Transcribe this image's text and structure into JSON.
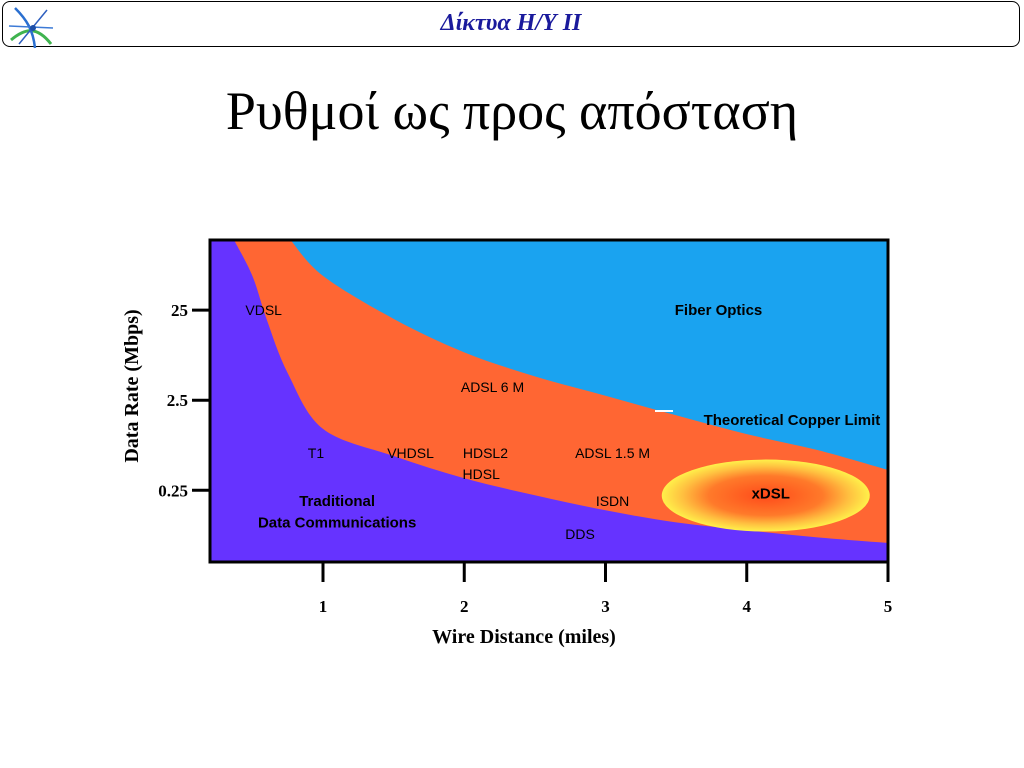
{
  "header": {
    "title": "Δίκτυα Η/Υ ΙΙ"
  },
  "slide": {
    "title": "Ρυθμοί ως προς απόσταση"
  },
  "colors": {
    "fiber": "#1aa3f0",
    "copper": "#ff6633",
    "traditional": "#6633ff",
    "xdsl_ring": "#ffee44",
    "header_text": "#1a1a9c"
  },
  "chart_data": {
    "type": "area",
    "xlabel": "Wire Distance (miles)",
    "ylabel": "Data Rate  (Mbps)",
    "x_ticks": [
      "1",
      "2",
      "3",
      "4",
      "5"
    ],
    "y_ticks": [
      "25",
      "2.5",
      "0.25"
    ],
    "x_range": [
      0.2,
      5
    ],
    "y_scale": "log",
    "y_range": [
      0.04,
      150
    ],
    "regions": [
      {
        "name": "Fiber Optics"
      },
      {
        "name": "Theoretical Copper Limit"
      },
      {
        "name": "Traditional Data Communications"
      }
    ],
    "boundaries": {
      "copper_limit": {
        "x": [
          0.77,
          1,
          1.5,
          2,
          2.5,
          3,
          3.5,
          4,
          4.5,
          5
        ],
        "y": [
          150,
          60,
          20,
          8.5,
          4.6,
          2.8,
          1.7,
          1.05,
          0.7,
          0.42
        ]
      },
      "traditional_upper": {
        "x": [
          0.37,
          0.5,
          0.6,
          0.75,
          1,
          1.5,
          2,
          2.5,
          3,
          3.5,
          4,
          4.5,
          5
        ],
        "y": [
          150,
          60,
          20,
          5,
          1.2,
          0.6,
          0.34,
          0.22,
          0.15,
          0.11,
          0.09,
          0.075,
          0.065
        ]
      }
    },
    "annotations": [
      {
        "text": "VDSL",
        "x": 0.58,
        "y": 25
      },
      {
        "text": "Fiber Optics",
        "x": 3.8,
        "y": 25
      },
      {
        "text": "ADSL 6 M",
        "x": 2.2,
        "y": 3.5
      },
      {
        "text": "Theoretical Copper Limit",
        "x": 4.32,
        "y": 1.5
      },
      {
        "text": "T1",
        "x": 0.95,
        "y": 0.65
      },
      {
        "text": "VHDSL",
        "x": 1.62,
        "y": 0.65
      },
      {
        "text": "HDSL2",
        "x": 2.15,
        "y": 0.65
      },
      {
        "text": "HDSL",
        "x": 2.12,
        "y": 0.38
      },
      {
        "text": "ADSL 1.5 M",
        "x": 3.05,
        "y": 0.65
      },
      {
        "text": "xDSL",
        "x": 4.17,
        "y": 0.23
      },
      {
        "text": "Traditional",
        "x": 1.1,
        "y": 0.19
      },
      {
        "text": "Data Communications",
        "x": 1.1,
        "y": 0.11
      },
      {
        "text": "ISDN",
        "x": 3.05,
        "y": 0.19
      },
      {
        "text": "DDS",
        "x": 2.82,
        "y": 0.082
      }
    ]
  }
}
